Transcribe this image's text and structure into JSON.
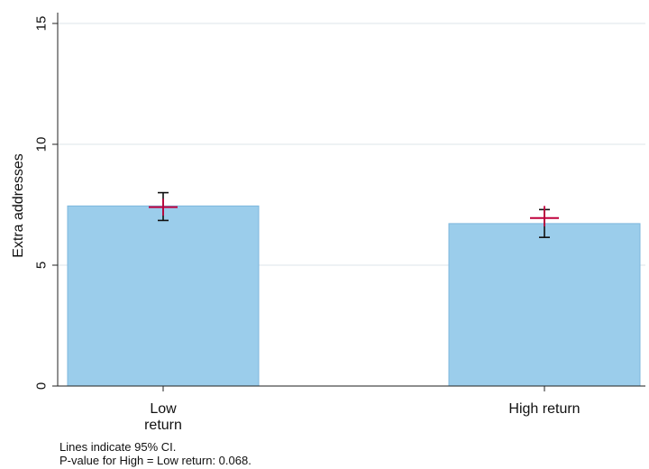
{
  "chart_data": {
    "type": "bar",
    "categories": [
      "Low\nreturn",
      "High return"
    ],
    "values": [
      7.45,
      6.72
    ],
    "point_estimates": [
      7.4,
      6.95
    ],
    "ci_black": [
      [
        6.85,
        8.0
      ],
      [
        6.15,
        7.3
      ]
    ],
    "ci_red": [
      [
        7.05,
        7.75
      ],
      [
        6.6,
        7.45
      ]
    ],
    "title": "",
    "xlabel": "",
    "ylabel": "Extra addresses",
    "ylim": [
      0,
      15
    ],
    "yticks": [
      0,
      5,
      10,
      15
    ],
    "grid": true,
    "colors": {
      "bar_fill": "#9bcdeb",
      "bar_stroke": "#7db7dd",
      "ci_black": "#111111",
      "estimate_marker": "#c0003c",
      "grid": "#e3eaee",
      "axis": "#222222"
    }
  },
  "notes": {
    "line1": "Lines indicate 95% CI.",
    "line2": "P-value for High = Low return: 0.068."
  }
}
